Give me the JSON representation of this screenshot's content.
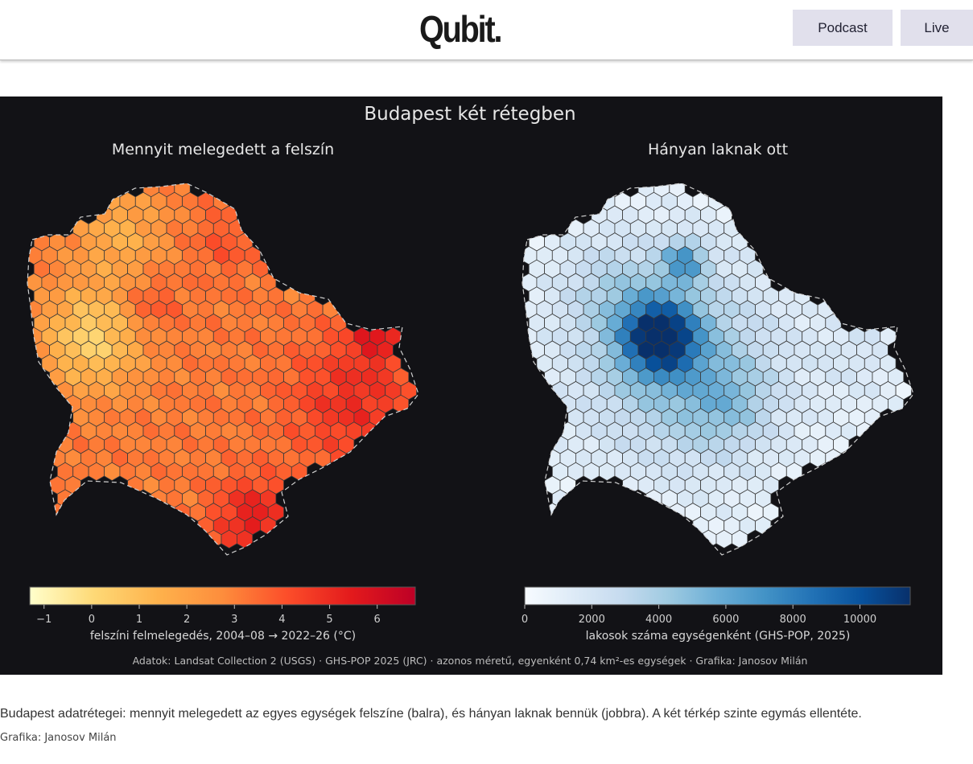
{
  "header": {
    "logo": "Qubit.",
    "nav": [
      {
        "label": "Podcast"
      },
      {
        "label": "Live"
      }
    ]
  },
  "figure": {
    "title": "Budapest két rétegben",
    "source_note": "Adatok: Landsat Collection 2 (USGS) · GHS-POP 2025 (JRC) · azonos méretű, egyenként 0,74 km²-es egységek · Grafika: Janosov Milán",
    "colors": {
      "background": "#121216",
      "text": "#e6e6e6",
      "hex_border": "#3a3a3a",
      "outline": "#cfcfcf"
    }
  },
  "chart_data": [
    {
      "type": "heatmap",
      "title": "Mennyit melegedett a felszín",
      "colorbar": {
        "label": "felszíni felmelegedés, 2004–08 → 2022–26 (°C)",
        "ticks": [
          "−1",
          "0",
          "1",
          "2",
          "3",
          "4",
          "5",
          "6"
        ],
        "range": [
          -1.3,
          6.8
        ],
        "colormap": "YlOrRd",
        "stops": [
          "#ffffcc",
          "#fed976",
          "#feb24c",
          "#fd8d3c",
          "#fc4e2a",
          "#e31a1c",
          "#bd0026"
        ]
      }
    },
    {
      "type": "heatmap",
      "title": "Hányan laknak ott",
      "colorbar": {
        "label": "lakosok száma egységenként (GHS-POP, 2025)",
        "ticks": [
          "0",
          "2000",
          "4000",
          "6000",
          "8000",
          "10000"
        ],
        "range": [
          0,
          11500
        ],
        "colormap": "Blues",
        "stops": [
          "#f7fbff",
          "#deebf7",
          "#c6dbef",
          "#9ecae1",
          "#6baed6",
          "#4292c6",
          "#2171b5",
          "#08519c",
          "#08306b"
        ]
      }
    }
  ],
  "caption": "Budapest adatrétegei: mennyit melegedett az egyes egységek felszíne (balra), és hányan laknak bennük (jobbra). A két térkép szinte egymás ellentéte.",
  "credit": "Grafika: Janosov Milán"
}
